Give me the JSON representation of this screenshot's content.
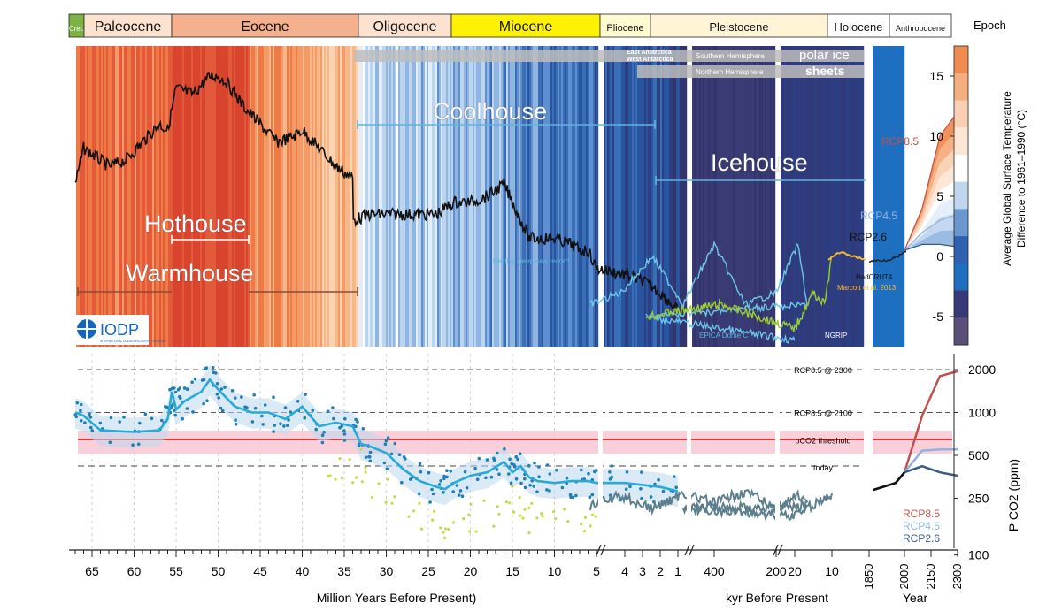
{
  "epochs": [
    {
      "name": "Cret.",
      "color": "#7cb342",
      "text_color": "#ffffff",
      "size": 8
    },
    {
      "name": "Paleocene",
      "color": "#fde3cf",
      "text_color": "#111111",
      "size": 16
    },
    {
      "name": "Eocene",
      "color": "#f5b18e",
      "text_color": "#111111",
      "size": 16
    },
    {
      "name": "Oligocene",
      "color": "#fde3cf",
      "text_color": "#111111",
      "size": 16
    },
    {
      "name": "Miocene",
      "color": "#fff200",
      "text_color": "#111111",
      "size": 16
    },
    {
      "name": "Pliocene",
      "color": "#fffbd0",
      "text_color": "#111111",
      "size": 11
    },
    {
      "name": "Pleistocene",
      "color": "#fff5d6",
      "text_color": "#111111",
      "size": 13
    },
    {
      "name": "Holocene",
      "color": "#ffffff",
      "text_color": "#111111",
      "size": 13
    },
    {
      "name": "Anthropocene",
      "color": "#ffffff",
      "text_color": "#111111",
      "size": 9
    }
  ],
  "epoch_title": "Epoch",
  "regimes": {
    "hothouse": "Hothouse",
    "warmhouse": "Warmhouse",
    "coolhouse": "Coolhouse",
    "icehouse": "Icehouse"
  },
  "ice_sheets": {
    "east": "East Antarctica",
    "west": "West Antarctica",
    "southern": "Southern Hemisphere",
    "northern": "Northern Hemisphere",
    "polar": "polar ice",
    "sheets": "sheets"
  },
  "record_labels": {
    "benthic": "benthic deep-sea record",
    "epica": "EPICA Dome C",
    "ngrip": "NGRIP",
    "marcott": "Marcott et al. 2013",
    "hadcrut": "HadCRUT4"
  },
  "logo": {
    "text": "IODP",
    "subtext": "INTERNATIONAL OCEAN DISCOVERY PROGRAM"
  },
  "colors": {
    "co2_line": "#29a9d8",
    "threshold": "#e53935",
    "rcp85": "#c0504d",
    "rcp45": "#8fb3dd",
    "rcp26": "#3b5a87",
    "proxy_blue": "#1f7fb5",
    "proxy_yellow": "#c9d94a"
  },
  "x_axis": {
    "myr_ticks": [
      "65",
      "60",
      "55",
      "50",
      "45",
      "40",
      "35",
      "30",
      "25",
      "20",
      "15",
      "10",
      "5",
      "4",
      "3",
      "2",
      "1"
    ],
    "kyr_ticks": [
      "400",
      "200",
      "20",
      "10"
    ],
    "year_ticks": [
      "1850",
      "2000",
      "2150",
      "2300"
    ],
    "myr_label": "Million Years Before Present)",
    "kyr_label": "kyr Before Present",
    "year_label": "Year"
  },
  "chart_data": [
    {
      "type": "line",
      "title": "",
      "ylabel": "Average Global Surface Temperature Difference to 1961–1990 (°C)",
      "ylim": [
        -8,
        17
      ],
      "colorbar_ticks": [
        15,
        10,
        5,
        0,
        -5
      ],
      "series": [
        {
          "name": "benthic deep-sea record",
          "unit_x": "Ma",
          "x": [
            67,
            66,
            65,
            63,
            61,
            59,
            57,
            56,
            55,
            53,
            51,
            50,
            49,
            47,
            45,
            43,
            41,
            40,
            38,
            36,
            34,
            33.9,
            32,
            30,
            28,
            26,
            24,
            22,
            20,
            18,
            16,
            15,
            14,
            13,
            12,
            10,
            8,
            7,
            6,
            5,
            4,
            3,
            2,
            1
          ],
          "y": [
            6,
            9,
            8.5,
            7.5,
            8,
            9.5,
            11,
            10.5,
            14,
            13.5,
            15,
            15,
            14.5,
            12.5,
            11,
            9.5,
            10,
            10.5,
            9,
            7.5,
            6.5,
            3,
            3.5,
            3.5,
            3.5,
            3.5,
            3.5,
            4.5,
            4.5,
            5,
            6,
            4.5,
            3,
            1.5,
            1.5,
            1.5,
            1,
            0.5,
            0.5,
            -1,
            -1.5,
            -2,
            -3,
            -4.5
          ]
        },
        {
          "name": "EPICA Dome C",
          "unit_x": "ka",
          "x": [
            800,
            700,
            600,
            500,
            400,
            300,
            200,
            130,
            100,
            60,
            20
          ],
          "y": [
            -4,
            -3,
            0,
            -4,
            1,
            -4,
            -3,
            1,
            -4,
            -5,
            -7
          ]
        },
        {
          "name": "NGRIP",
          "unit_x": "ka",
          "x": [
            60,
            40,
            20,
            15,
            12,
            10
          ],
          "y": [
            -5,
            -4,
            -6,
            -3,
            -4,
            0
          ]
        },
        {
          "name": "Marcott et al. 2013",
          "unit_x": "ka",
          "x": [
            11,
            9,
            7,
            5,
            3,
            1
          ],
          "y": [
            -0.3,
            0.2,
            0.3,
            0.1,
            -0.1,
            -0.3
          ]
        },
        {
          "name": "HadCRUT4",
          "unit_x": "year",
          "x": [
            1850,
            1900,
            1950,
            2000,
            2015
          ],
          "y": [
            -0.4,
            -0.3,
            -0.1,
            0.3,
            0.6
          ]
        },
        {
          "name": "RCP8.5",
          "x": [
            2000,
            2100,
            2200,
            2300
          ],
          "y": [
            0.5,
            4,
            10,
            12
          ]
        },
        {
          "name": "RCP4.5",
          "x": [
            2000,
            2100,
            2200,
            2300
          ],
          "y": [
            0.5,
            2,
            3,
            3.5
          ]
        },
        {
          "name": "RCP2.6",
          "x": [
            2000,
            2100,
            2200,
            2300
          ],
          "y": [
            0.5,
            1,
            1,
            0.8
          ]
        }
      ],
      "annotations": [
        "Hothouse",
        "Warmhouse",
        "Coolhouse",
        "Icehouse",
        "polar ice sheets"
      ],
      "grid": true
    },
    {
      "type": "scatter",
      "title": "",
      "ylabel": "P CO2 (ppm)",
      "yscale": "log",
      "ylim": [
        100,
        2200
      ],
      "y_ticks": [
        100,
        250,
        500,
        1000,
        2000
      ],
      "reference_lines": [
        {
          "label": "RCP8.5 @ 2300",
          "value": 2000
        },
        {
          "label": "RCP8.5 @ 2100",
          "value": 1000
        },
        {
          "label": "pCO2 threshold",
          "value": 640
        },
        {
          "label": "today",
          "value": 415
        }
      ],
      "series": [
        {
          "name": "CO2 smoothed",
          "unit_x": "Ma",
          "x": [
            67,
            66,
            64,
            60,
            57,
            56,
            55.5,
            55,
            54,
            52,
            51,
            50,
            48,
            46,
            44,
            42,
            40,
            38,
            36,
            34,
            33,
            32,
            30,
            28,
            26,
            24,
            23,
            22,
            20,
            18,
            16,
            15,
            14,
            13,
            12,
            10,
            8,
            6,
            5,
            4,
            3,
            2,
            1
          ],
          "y": [
            1000,
            950,
            750,
            730,
            750,
            900,
            1400,
            1050,
            1200,
            1400,
            1700,
            1450,
            1100,
            1000,
            1000,
            900,
            1100,
            800,
            850,
            800,
            600,
            580,
            520,
            400,
            330,
            300,
            290,
            320,
            360,
            380,
            450,
            380,
            420,
            350,
            330,
            320,
            330,
            330,
            320,
            320,
            310,
            300,
            280
          ]
        },
        {
          "name": "CO2 late Pleistocene",
          "unit_x": "ka",
          "x": [
            800,
            700,
            600,
            500,
            400,
            300,
            200,
            130,
            100,
            50,
            20,
            12,
            10
          ],
          "y": [
            220,
            260,
            210,
            270,
            230,
            280,
            210,
            260,
            220,
            210,
            190,
            250,
            270
          ]
        },
        {
          "name": "RCP8.5",
          "x": [
            1850,
            1950,
            2000,
            2100,
            2200,
            2300
          ],
          "y": [
            280,
            320,
            380,
            950,
            1800,
            1950
          ]
        },
        {
          "name": "RCP4.5",
          "x": [
            1850,
            1950,
            2000,
            2100,
            2200,
            2300
          ],
          "y": [
            280,
            320,
            380,
            540,
            550,
            550
          ]
        },
        {
          "name": "RCP2.6",
          "x": [
            1850,
            1950,
            2000,
            2100,
            2200,
            2300
          ],
          "y": [
            280,
            320,
            380,
            420,
            380,
            360
          ]
        }
      ],
      "legend": [
        "RCP8.5",
        "RCP4.5",
        "RCP2.6"
      ],
      "legend_position": "bottom-right",
      "grid": true
    }
  ]
}
